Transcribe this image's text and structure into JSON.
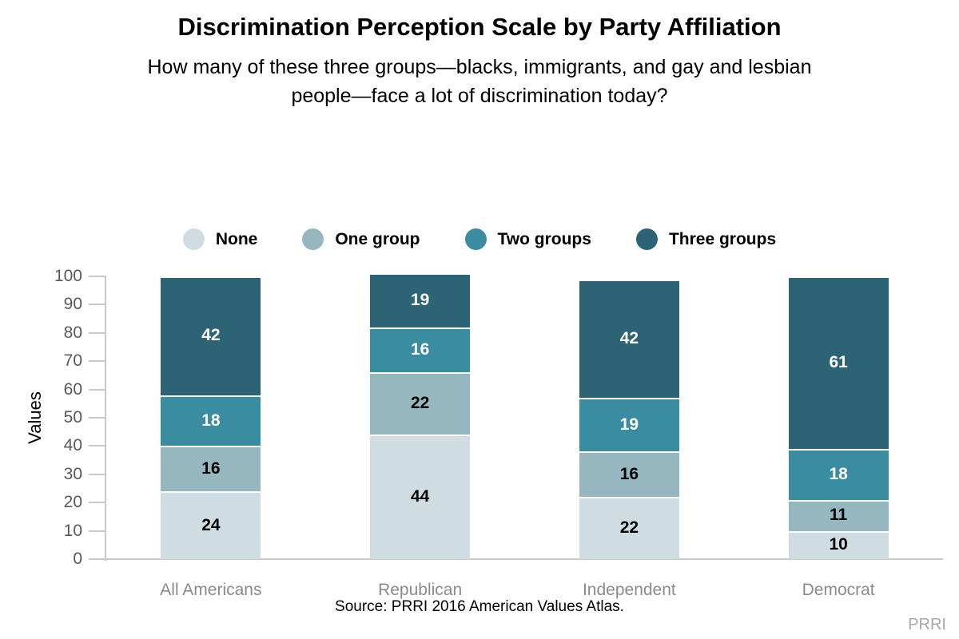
{
  "title": "Discrimination Perception Scale by Party Affiliation",
  "subtitle_lines": [
    "How many of these three groups—blacks, immigrants, and gay and lesbian",
    "people—face a lot of discrimination today?"
  ],
  "source_note": "Source: PRRI 2016 American Values Atlas.",
  "watermark": "PRRI",
  "colors": {
    "background": "#ffffff",
    "axis_line": "#c9c9c9",
    "tick_label": "#595959",
    "category_label": "#8a8a8a",
    "watermark_text": "#a8a8a8",
    "segment_separator": "#ffffff"
  },
  "chart_data": {
    "type": "bar",
    "stacked": true,
    "title": "Discrimination Perception Scale by Party Affiliation",
    "xlabel": "",
    "ylabel": "Values",
    "ylim": [
      0,
      100
    ],
    "yticks": [
      0,
      10,
      20,
      30,
      40,
      50,
      60,
      70,
      80,
      90,
      100
    ],
    "grid": false,
    "legend_position": "top-center",
    "categories": [
      "All Americans",
      "Republican",
      "Independent",
      "Democrat"
    ],
    "series": [
      {
        "name": "None",
        "color": "#cfdde2",
        "label_color": "#000000",
        "values": [
          24,
          44,
          22,
          10
        ]
      },
      {
        "name": "One group",
        "color": "#97b7c0",
        "label_color": "#000000",
        "values": [
          16,
          22,
          16,
          11
        ]
      },
      {
        "name": "Two groups",
        "color": "#3a8ca0",
        "label_color": "#ffffff",
        "values": [
          18,
          16,
          19,
          18
        ]
      },
      {
        "name": "Three groups",
        "color": "#2c6476",
        "label_color": "#ffffff",
        "values": [
          42,
          19,
          42,
          61
        ]
      }
    ]
  }
}
